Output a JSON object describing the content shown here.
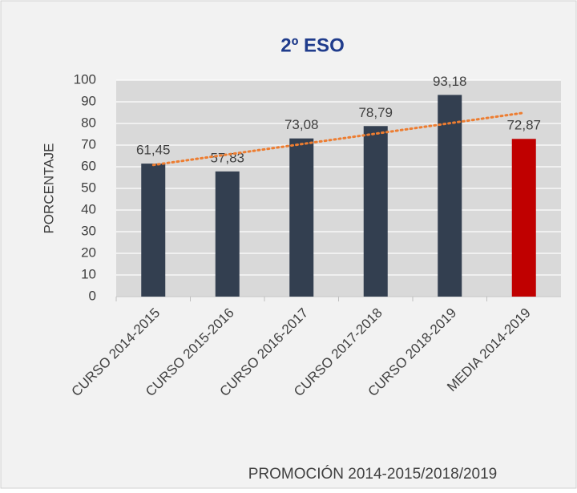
{
  "chart_data": {
    "type": "bar",
    "title": "2º ESO",
    "categories": [
      "CURSO 2014-2015",
      "CURSO 2015-2016",
      "CURSO 2016-2017",
      "CURSO 2017-2018",
      "CURSO 2018-2019",
      "MEDIA 2014-2019"
    ],
    "values": [
      61.45,
      57.83,
      73.08,
      78.79,
      93.18,
      72.87
    ],
    "value_labels": [
      "61,45",
      "57,83",
      "73,08",
      "78,79",
      "93,18",
      "72,87"
    ],
    "colors": [
      "#333f50",
      "#333f50",
      "#333f50",
      "#333f50",
      "#333f50",
      "#c00000"
    ],
    "ylabel": "PORCENTAJE",
    "xlabel": "PROMOCIÓN 2014-2015/2018/2019",
    "ylim": [
      0,
      100
    ],
    "yticks": [
      0,
      10,
      20,
      30,
      40,
      50,
      60,
      70,
      80,
      90,
      100
    ],
    "grid": true,
    "trendline": {
      "type": "linear",
      "color": "#ed7d31"
    }
  }
}
